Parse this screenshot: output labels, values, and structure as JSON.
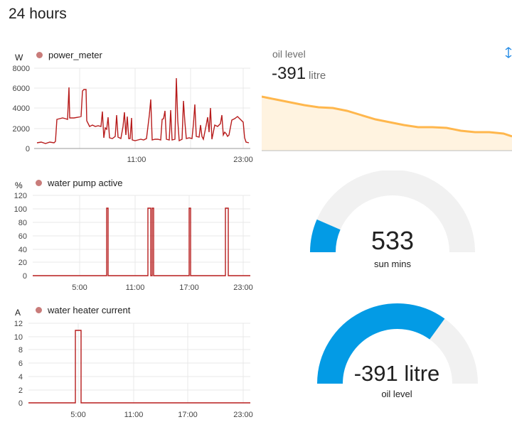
{
  "page": {
    "title": "24 hours"
  },
  "charts": {
    "power": {
      "unit": "W",
      "legend": "power_meter",
      "y_ticks": [
        "8000",
        "6000",
        "4000",
        "2000",
        "0"
      ],
      "x_ticks": [
        "11:00",
        "23:00"
      ]
    },
    "pump": {
      "unit": "%",
      "legend": "water pump active",
      "y_ticks": [
        "120",
        "100",
        "80",
        "60",
        "40",
        "20",
        "0"
      ],
      "x_ticks": [
        "5:00",
        "11:00",
        "17:00",
        "23:00"
      ]
    },
    "heater": {
      "unit": "A",
      "legend": "water heater current",
      "y_ticks": [
        "12",
        "10",
        "8",
        "6",
        "4",
        "2",
        "0"
      ],
      "x_ticks": [
        "5:00",
        "11:00",
        "17:00",
        "23:00"
      ]
    }
  },
  "oil_sensor": {
    "name": "oil level",
    "value": "-391",
    "unit": "litre"
  },
  "gauges": {
    "sun": {
      "value": "533",
      "label": "sun mins",
      "fraction": 0.13
    },
    "oil": {
      "value": "-391 litre",
      "label": "oil level",
      "fraction": 0.7
    }
  },
  "chart_data": [
    {
      "type": "line",
      "title": "",
      "ylabel": "W",
      "ylim": [
        0,
        8000
      ],
      "series": [
        {
          "name": "power_meter",
          "color": "#b71c1c"
        }
      ],
      "x_tick_labels": [
        "11:00",
        "23:00"
      ]
    },
    {
      "type": "line",
      "title": "",
      "ylabel": "%",
      "ylim": [
        0,
        120
      ],
      "series": [
        {
          "name": "water pump active",
          "color": "#b71c1c",
          "pulses": [
            8.9,
            13.1,
            13.5,
            17.1,
            21.2
          ],
          "pulse_value": 100
        }
      ],
      "x_tick_labels": [
        "5:00",
        "11:00",
        "17:00",
        "23:00"
      ]
    },
    {
      "type": "line",
      "title": "",
      "ylabel": "A",
      "ylim": [
        0,
        12
      ],
      "series": [
        {
          "name": "water heater current",
          "color": "#b71c1c",
          "pulses": [
            4.7
          ],
          "pulse_value": 11
        }
      ],
      "x_tick_labels": [
        "5:00",
        "11:00",
        "17:00",
        "23:00"
      ]
    },
    {
      "type": "area",
      "title": "",
      "series": [
        {
          "name": "oil level",
          "color": "#ffb74d"
        }
      ]
    }
  ],
  "colors": {
    "gauge_fill": "#039be5",
    "gauge_track": "#f1f1f1",
    "line": "#b71c1c",
    "oil_line": "#ffb74d",
    "oil_fill": "#fff3e0"
  }
}
